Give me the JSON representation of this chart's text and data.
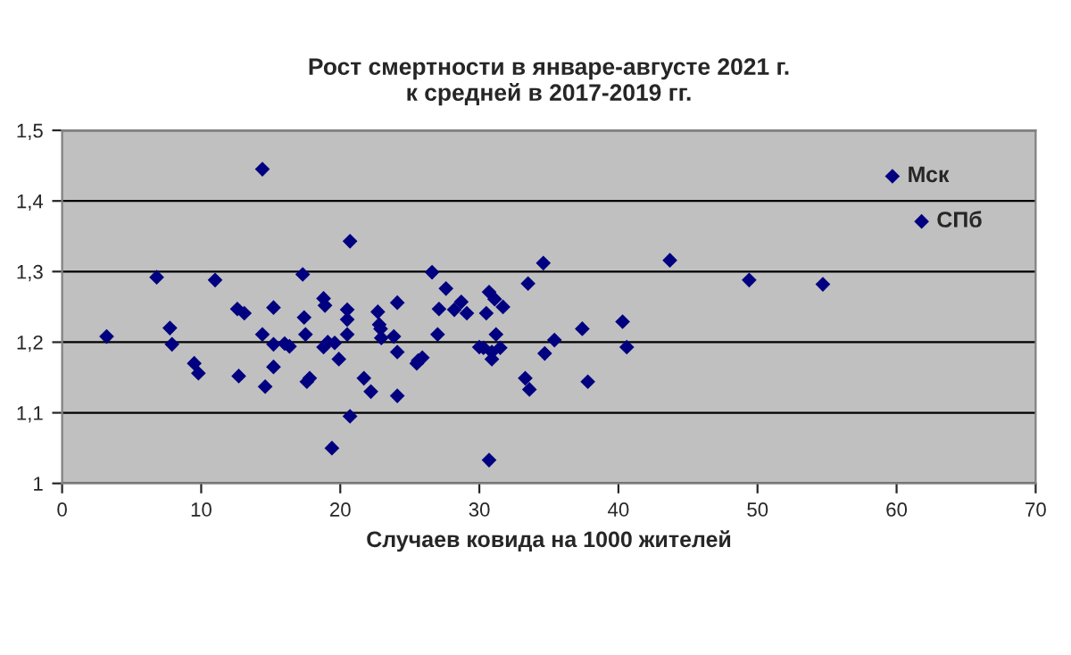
{
  "chart_data": {
    "type": "scatter",
    "title": "Рост смертности в январе-августе 2021 г.\nк средней в 2017-2019 гг.",
    "xlabel": "Случаев ковида на 1000 жителей",
    "x": [
      3.2,
      6.8,
      7.75,
      7.9,
      9.5,
      9.8,
      11.0,
      12.6,
      13.1,
      12.7,
      14.4,
      14.4,
      15.2,
      15.2,
      14.6,
      15.2,
      16.0,
      16.35,
      17.3,
      17.4,
      17.5,
      17.8,
      17.6,
      18.8,
      18.9,
      18.8,
      19.1,
      19.6,
      19.9,
      19.4,
      20.7,
      20.5,
      20.5,
      20.5,
      20.7,
      21.7,
      22.2,
      22.7,
      22.8,
      22.9,
      22.95,
      23.85,
      24.1,
      24.1,
      24.1,
      25.5,
      25.6,
      25.9,
      26.6,
      27.0,
      27.1,
      27.6,
      28.2,
      28.7,
      29.1,
      30.0,
      30.3,
      30.5,
      30.7,
      30.9,
      30.9,
      31.1,
      31.2,
      31.5,
      31.7,
      30.7,
      33.3,
      33.6,
      33.5,
      34.6,
      34.7,
      35.4,
      37.4,
      37.8,
      40.3,
      40.6,
      43.7,
      49.4,
      54.7,
      59.7,
      61.8
    ],
    "series": [
      {
        "color": "#000080",
        "values": [
          1.208,
          1.292,
          1.22,
          1.197,
          1.17,
          1.156,
          1.288,
          1.247,
          1.241,
          1.152,
          1.445,
          1.211,
          1.249,
          1.197,
          1.137,
          1.165,
          1.198,
          1.194,
          1.296,
          1.235,
          1.211,
          1.149,
          1.144,
          1.262,
          1.252,
          1.193,
          1.2,
          1.199,
          1.176,
          1.05,
          1.343,
          1.246,
          1.232,
          1.211,
          1.095,
          1.149,
          1.13,
          1.243,
          1.225,
          1.219,
          1.206,
          1.208,
          1.186,
          1.256,
          1.124,
          1.17,
          1.174,
          1.178,
          1.299,
          1.211,
          1.247,
          1.276,
          1.246,
          1.257,
          1.241,
          1.193,
          1.192,
          1.241,
          1.271,
          1.186,
          1.176,
          1.261,
          1.211,
          1.192,
          1.25,
          1.033,
          1.149,
          1.133,
          1.283,
          1.312,
          1.184,
          1.203,
          1.219,
          1.144,
          1.229,
          1.193,
          1.316,
          1.288,
          1.282,
          1.435,
          1.371
        ]
      }
    ],
    "annotations": [
      {
        "text": "Мск",
        "x": 59.7,
        "y": 1.435
      },
      {
        "text": "СПб",
        "x": 61.8,
        "y": 1.371
      }
    ],
    "xlim": [
      0,
      70
    ],
    "xticks": [
      0,
      10,
      20,
      30,
      40,
      50,
      60,
      70
    ],
    "ylim": [
      1,
      1.5
    ],
    "yticks": [
      {
        "value": 1,
        "label": "1"
      },
      {
        "value": 1.1,
        "label": "1,1"
      },
      {
        "value": 1.2,
        "label": "1,2"
      },
      {
        "value": 1.3,
        "label": "1,3"
      },
      {
        "value": 1.4,
        "label": "1,4"
      },
      {
        "value": 1.5,
        "label": "1,5"
      }
    ],
    "grid": "y",
    "marker": "diamond",
    "legend": false
  }
}
